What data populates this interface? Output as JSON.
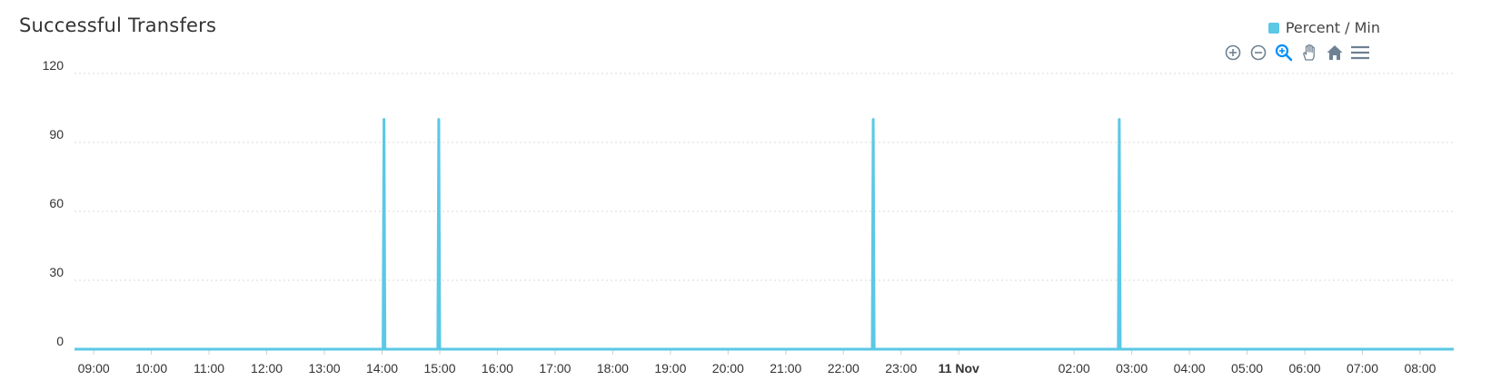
{
  "chart_data": {
    "type": "line",
    "title": "Successful Transfers",
    "xlabel": "",
    "ylabel": "",
    "ylim": [
      0,
      120
    ],
    "yticks": [
      0,
      30,
      60,
      90,
      120
    ],
    "xlim": [
      "2024-11-10 08:40",
      "2024-11-11 08:35"
    ],
    "xticks": [
      {
        "time": "2024-11-10 09:00",
        "label": "09:00"
      },
      {
        "time": "2024-11-10 10:00",
        "label": "10:00"
      },
      {
        "time": "2024-11-10 11:00",
        "label": "11:00"
      },
      {
        "time": "2024-11-10 12:00",
        "label": "12:00"
      },
      {
        "time": "2024-11-10 13:00",
        "label": "13:00"
      },
      {
        "time": "2024-11-10 14:00",
        "label": "14:00"
      },
      {
        "time": "2024-11-10 15:00",
        "label": "15:00"
      },
      {
        "time": "2024-11-10 16:00",
        "label": "16:00"
      },
      {
        "time": "2024-11-10 17:00",
        "label": "17:00"
      },
      {
        "time": "2024-11-10 18:00",
        "label": "18:00"
      },
      {
        "time": "2024-11-10 19:00",
        "label": "19:00"
      },
      {
        "time": "2024-11-10 20:00",
        "label": "20:00"
      },
      {
        "time": "2024-11-10 21:00",
        "label": "21:00"
      },
      {
        "time": "2024-11-10 22:00",
        "label": "22:00"
      },
      {
        "time": "2024-11-10 23:00",
        "label": "23:00"
      },
      {
        "time": "2024-11-11 00:00",
        "label": "11 Nov",
        "bold": true
      },
      {
        "time": "2024-11-11 02:00",
        "label": "02:00"
      },
      {
        "time": "2024-11-11 03:00",
        "label": "03:00"
      },
      {
        "time": "2024-11-11 04:00",
        "label": "04:00"
      },
      {
        "time": "2024-11-11 05:00",
        "label": "05:00"
      },
      {
        "time": "2024-11-11 06:00",
        "label": "06:00"
      },
      {
        "time": "2024-11-11 07:00",
        "label": "07:00"
      },
      {
        "time": "2024-11-11 08:00",
        "label": "08:00"
      }
    ],
    "grid": true,
    "legend_position": "top-right",
    "series": [
      {
        "name": "Percent / Min",
        "color": "#5bc8e6",
        "points": [
          {
            "x": "2024-11-10 08:40",
            "y": 0
          },
          {
            "x": "2024-11-10 14:01",
            "y": 0
          },
          {
            "x": "2024-11-10 14:02",
            "y": 100
          },
          {
            "x": "2024-11-10 14:03",
            "y": 0
          },
          {
            "x": "2024-11-10 14:58",
            "y": 0
          },
          {
            "x": "2024-11-10 14:59",
            "y": 100
          },
          {
            "x": "2024-11-10 15:00",
            "y": 0
          },
          {
            "x": "2024-11-10 22:30",
            "y": 0
          },
          {
            "x": "2024-11-10 22:31",
            "y": 100
          },
          {
            "x": "2024-11-10 22:32",
            "y": 0
          },
          {
            "x": "2024-11-11 02:46",
            "y": 0
          },
          {
            "x": "2024-11-11 02:47",
            "y": 100
          },
          {
            "x": "2024-11-11 02:48",
            "y": 0
          },
          {
            "x": "2024-11-11 08:35",
            "y": 0
          }
        ]
      }
    ]
  },
  "toolbar": {
    "icons": [
      "zoom-in-icon",
      "zoom-out-icon",
      "selection-zoom-icon",
      "pan-hand-icon",
      "home-reset-icon",
      "menu-icon"
    ],
    "active_color": "#008ffb",
    "icon_color": "#6e8192"
  }
}
